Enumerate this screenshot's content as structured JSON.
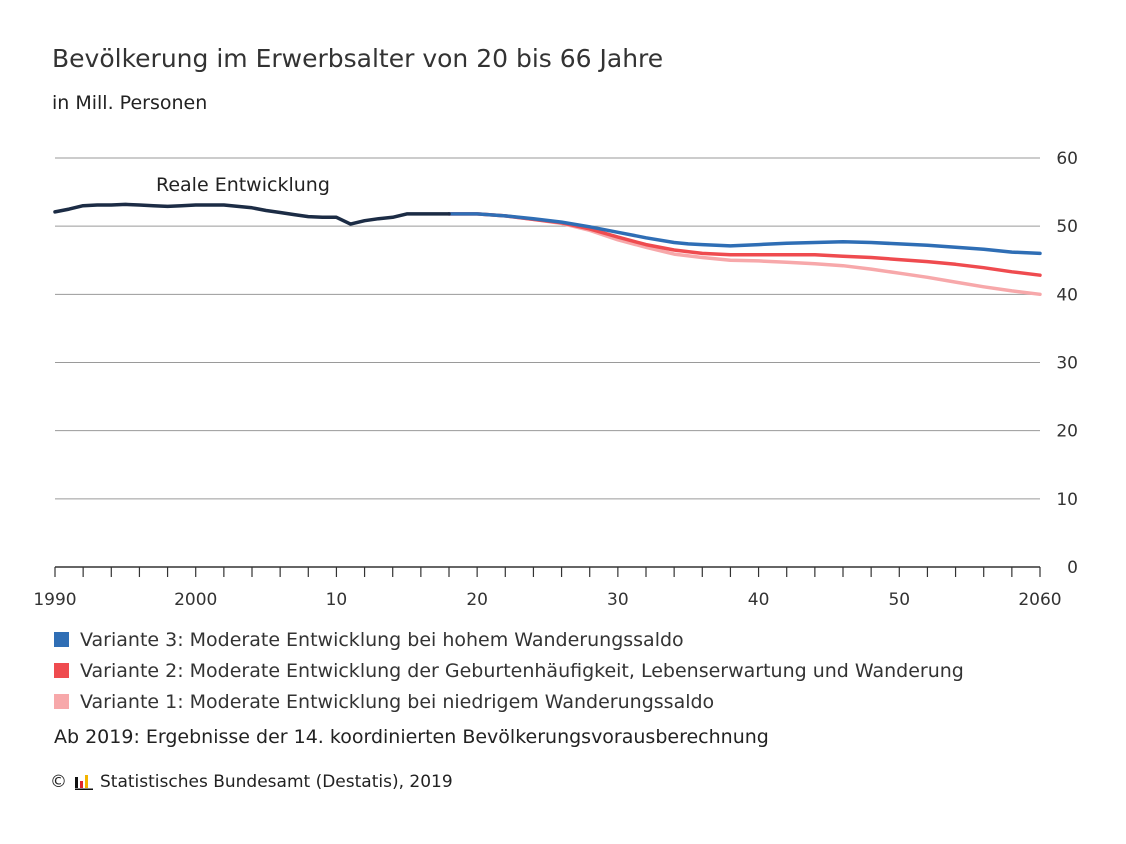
{
  "chart_data": {
    "type": "line",
    "title": "Bevölkerung im Erwerbsalter von 20 bis 66 Jahre",
    "subtitle": "in Mill. Personen",
    "xlim": [
      1990,
      2060
    ],
    "ylim": [
      0,
      60
    ],
    "grid": true,
    "x_ticks": [
      {
        "value": 1990,
        "label": "1990"
      },
      {
        "value": 2000,
        "label": "2000"
      },
      {
        "value": 2010,
        "label": "10"
      },
      {
        "value": 2020,
        "label": "20"
      },
      {
        "value": 2030,
        "label": "30"
      },
      {
        "value": 2040,
        "label": "40"
      },
      {
        "value": 2050,
        "label": "50"
      },
      {
        "value": 2060,
        "label": "2060"
      }
    ],
    "y_ticks": [
      0,
      10,
      20,
      30,
      40,
      50,
      60
    ],
    "annotation": "Reale Entwicklung",
    "series": [
      {
        "key": "real",
        "color": "#1c2c45",
        "x": [
          1990,
          1991,
          1992,
          1993,
          1994,
          1995,
          1996,
          1997,
          1998,
          1999,
          2000,
          2001,
          2002,
          2003,
          2004,
          2005,
          2006,
          2007,
          2008,
          2009,
          2010,
          2011,
          2012,
          2013,
          2014,
          2015,
          2016,
          2017,
          2018
        ],
        "y": [
          52.1,
          52.5,
          53.0,
          53.1,
          53.1,
          53.2,
          53.1,
          53.0,
          52.9,
          53.0,
          53.1,
          53.1,
          53.1,
          52.9,
          52.7,
          52.3,
          52.0,
          51.7,
          51.4,
          51.3,
          51.3,
          50.3,
          50.8,
          51.1,
          51.3,
          51.8,
          51.8,
          51.8,
          51.8
        ]
      },
      {
        "key": "v3",
        "name": "Variante 3: Moderate Entwicklung bei hohem Wanderungssaldo",
        "color": "#2f6eb5",
        "x": [
          2018,
          2020,
          2022,
          2024,
          2026,
          2028,
          2030,
          2032,
          2034,
          2035,
          2036,
          2038,
          2040,
          2042,
          2044,
          2046,
          2048,
          2050,
          2052,
          2054,
          2056,
          2058,
          2060
        ],
        "y": [
          51.8,
          51.8,
          51.5,
          51.1,
          50.6,
          49.9,
          49.1,
          48.3,
          47.6,
          47.4,
          47.3,
          47.1,
          47.3,
          47.5,
          47.6,
          47.7,
          47.6,
          47.4,
          47.2,
          46.9,
          46.6,
          46.2,
          46.0
        ]
      },
      {
        "key": "v2",
        "name": "Variante 2: Moderate Entwicklung der Geburtenhäufigkeit, Lebenserwartung und Wanderung",
        "color": "#ef4b4f",
        "x": [
          2018,
          2020,
          2022,
          2024,
          2026,
          2028,
          2030,
          2032,
          2034,
          2036,
          2038,
          2040,
          2042,
          2044,
          2046,
          2048,
          2050,
          2052,
          2054,
          2056,
          2058,
          2060
        ],
        "y": [
          51.8,
          51.8,
          51.5,
          51.0,
          50.5,
          49.6,
          48.4,
          47.3,
          46.5,
          46.0,
          45.8,
          45.8,
          45.8,
          45.8,
          45.6,
          45.4,
          45.1,
          44.8,
          44.4,
          43.9,
          43.3,
          42.8
        ]
      },
      {
        "key": "v1",
        "name": "Variante 1: Moderate Entwicklung bei niedrigem Wanderungssaldo",
        "color": "#f7a8aa",
        "x": [
          2018,
          2020,
          2022,
          2024,
          2026,
          2028,
          2030,
          2032,
          2034,
          2036,
          2038,
          2040,
          2042,
          2044,
          2046,
          2048,
          2050,
          2052,
          2054,
          2056,
          2058,
          2060
        ],
        "y": [
          51.8,
          51.8,
          51.5,
          51.0,
          50.4,
          49.4,
          48.0,
          46.9,
          45.9,
          45.4,
          45.0,
          44.9,
          44.7,
          44.5,
          44.2,
          43.7,
          43.1,
          42.5,
          41.8,
          41.1,
          40.5,
          40.0
        ]
      }
    ]
  },
  "legend": [
    {
      "label": "Variante 3: Moderate Entwicklung bei hohem Wanderungssaldo",
      "color": "#2f6eb5"
    },
    {
      "label": "Variante 2: Moderate Entwicklung der Geburtenhäufigkeit, Lebenserwartung und Wanderung",
      "color": "#ef4b4f"
    },
    {
      "label": "Variante 1: Moderate Entwicklung bei niedrigem Wanderungssaldo",
      "color": "#f7a8aa"
    }
  ],
  "note": "Ab 2019: Ergebnisse der 14. koordinierten Bevölkerungsvorausberechnung",
  "source": {
    "copyright": "©",
    "logo_icon": "destatis-logo-icon",
    "text": "Statistisches Bundesamt (Destatis), 2019"
  }
}
